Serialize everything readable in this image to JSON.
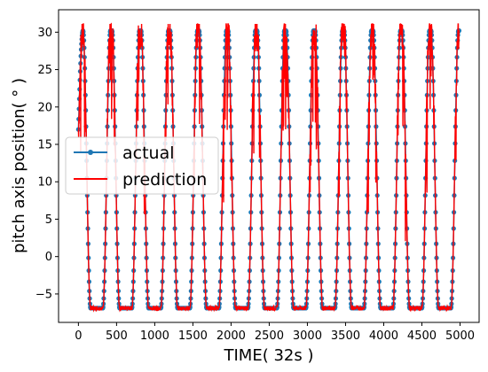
{
  "chart_data": {
    "type": "line",
    "xlabel": "TIME( 32s )",
    "ylabel": "pitch axis position( ° )",
    "xlim": [
      -260,
      5250
    ],
    "ylim": [
      -8.8,
      33.0
    ],
    "xticks": [
      0,
      500,
      1000,
      1500,
      2000,
      2500,
      3000,
      3500,
      4000,
      4500,
      5000
    ],
    "yticks": [
      -5,
      0,
      5,
      10,
      15,
      20,
      25,
      30
    ],
    "grid": false,
    "legend_position": "center-left",
    "cycle": {
      "period": 380,
      "count": 13,
      "first_peak_x": 60,
      "max_value": 30.2,
      "min_value": -6.9,
      "rise_duration": 100,
      "fall_duration": 100,
      "low_plateau_start_x": 160,
      "last_x": 4990,
      "last_value": 29.7
    },
    "series": [
      {
        "name": "actual",
        "color": "#1f77b4",
        "marker": "dot"
      },
      {
        "name": "prediction",
        "color": "#ff0000",
        "marker": "none"
      }
    ]
  }
}
